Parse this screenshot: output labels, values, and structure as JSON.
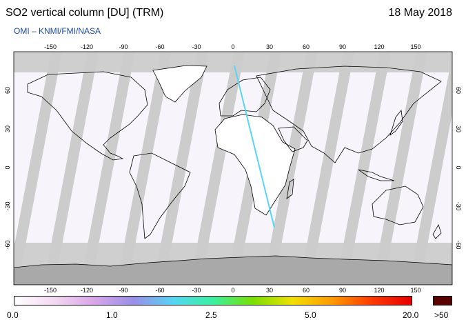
{
  "header": {
    "title": "SO2 vertical column [DU] (TRM)",
    "date": "18 May 2018",
    "credit": "OMI  –  KNMI/FMI/NASA"
  },
  "map": {
    "projection": "equirectangular",
    "lon_ticks": [
      "-150",
      "-120",
      "-90",
      "-60",
      "-30",
      "0",
      "30",
      "60",
      "90",
      "120",
      "150"
    ],
    "lat_ticks": [
      "60",
      "30",
      "0",
      "-30",
      "-60"
    ],
    "colors": {
      "land_outline": "#000000",
      "swath_gap": "#cccccc",
      "no_data": "#a9a9a9",
      "background_low_value": "#f7f4fb"
    }
  },
  "colorbar": {
    "labels": [
      "0.0",
      "1.0",
      "2.5",
      "5.0",
      "20.0",
      ">50"
    ],
    "gradient_colors": [
      "#ffffff",
      "#f4d8f2",
      "#d9a6e8",
      "#9a8ee8",
      "#55d6f2",
      "#39f0a0",
      "#78e000",
      "#f0e000",
      "#ff9a00",
      "#ff3a00",
      "#e60000"
    ],
    "overflow_color": "#5a0000"
  }
}
